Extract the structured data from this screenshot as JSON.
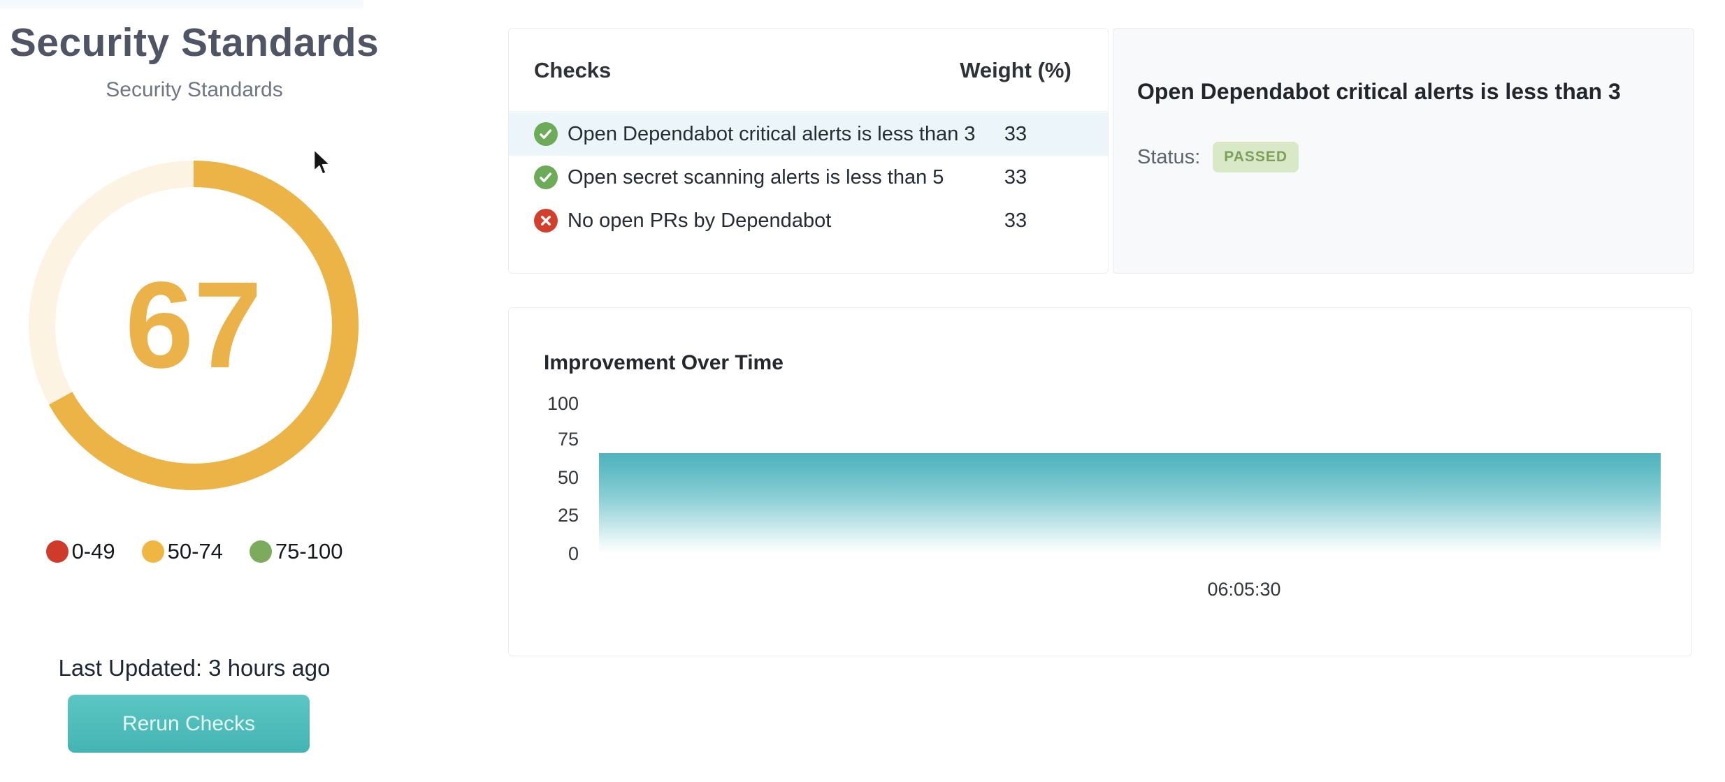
{
  "app": {
    "title": "Security Standards",
    "subtitle": "Security Standards"
  },
  "gauge": {
    "score": "67",
    "percent": 67,
    "arc_color": "#ecb347",
    "track_color": "#fdf3e2",
    "score_color": "#ebb24a"
  },
  "legend": {
    "items": [
      {
        "label": "0-49",
        "color": "#ce3b2a"
      },
      {
        "label": "50-74",
        "color": "#efb742"
      },
      {
        "label": "75-100",
        "color": "#7cab5e"
      }
    ]
  },
  "footer": {
    "last_updated": "Last Updated: 3 hours ago",
    "rerun_label": "Rerun Checks"
  },
  "checks": {
    "header": "Checks",
    "weight_header": "Weight (%)",
    "rows": [
      {
        "text": "Open Dependabot critical alerts is less than 3",
        "weight": 33,
        "status": "passed",
        "selected": true
      },
      {
        "text": "Open secret scanning alerts is less than 5",
        "weight": 33,
        "status": "passed",
        "selected": false
      },
      {
        "text": "No open PRs by Dependabot",
        "weight": 33,
        "status": "failed",
        "selected": false
      }
    ]
  },
  "detail": {
    "title": "Open Dependabot critical alerts is less than 3",
    "status_label": "Status:",
    "status_value": "PASSED"
  },
  "chart_data": {
    "type": "area",
    "title": "Improvement Over Time",
    "x": [
      "06:05:30"
    ],
    "series": [
      {
        "name": "score",
        "values": [
          67
        ]
      }
    ],
    "xlabel": "",
    "ylabel": "",
    "ylim": [
      0,
      100
    ],
    "yticks": [
      0,
      25,
      50,
      75,
      100
    ],
    "grid": false,
    "legend_position": "none",
    "area_color": "#50b2bd"
  },
  "colors": {
    "accent_teal": "#46b8b5",
    "selected_row_bg": "#ecf5fa",
    "pass_green": "#6cab57",
    "fail_red": "#d2402d",
    "badge_bg": "#d9e8c7",
    "badge_text": "#7ea15a"
  }
}
